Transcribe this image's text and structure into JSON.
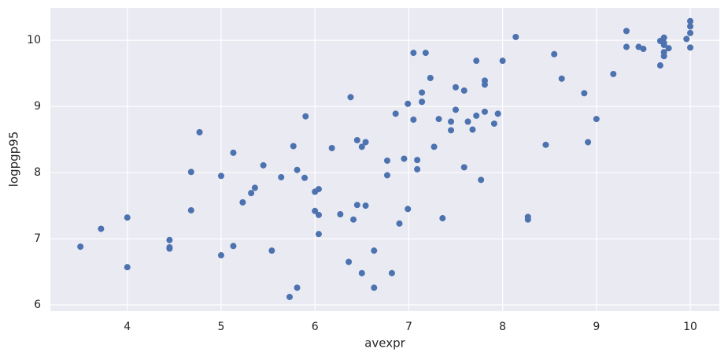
{
  "chart_data": {
    "type": "scatter",
    "x_label": "avexpr",
    "y_label": "logpgp95",
    "x": [
      3.5,
      3.72,
      4.0,
      4.0,
      4.45,
      4.45,
      4.45,
      4.68,
      4.68,
      4.77,
      5.0,
      5.0,
      5.13,
      5.13,
      5.23,
      5.32,
      5.36,
      5.45,
      5.54,
      5.64,
      5.77,
      5.81,
      5.89,
      5.9,
      5.73,
      5.81,
      6.0,
      6.04,
      6.0,
      6.04,
      6.04,
      6.18,
      6.27,
      6.36,
      6.38,
      6.41,
      6.45,
      6.5,
      6.54,
      6.45,
      6.54,
      6.5,
      6.63,
      6.63,
      6.82,
      6.77,
      6.77,
      6.86,
      6.9,
      6.95,
      6.99,
      6.99,
      7.05,
      7.05,
      7.09,
      7.09,
      7.14,
      7.14,
      7.18,
      7.23,
      7.27,
      7.32,
      7.36,
      7.45,
      7.45,
      7.5,
      7.5,
      7.59,
      7.59,
      7.63,
      7.68,
      7.72,
      7.72,
      7.77,
      7.81,
      7.81,
      7.81,
      7.91,
      7.95,
      8.0,
      8.14,
      8.27,
      8.27,
      8.46,
      8.55,
      8.63,
      8.87,
      8.91,
      9.0,
      9.18,
      9.32,
      9.32,
      9.45,
      9.5,
      9.68,
      9.68,
      9.72,
      9.72,
      9.72,
      9.72,
      9.72,
      9.77,
      9.96,
      10.0,
      10.0,
      10.0,
      10.0
    ],
    "values": [
      6.88,
      7.15,
      7.32,
      6.57,
      6.98,
      6.87,
      6.85,
      8.01,
      7.43,
      8.61,
      7.95,
      6.75,
      8.3,
      6.89,
      7.55,
      7.69,
      7.77,
      8.11,
      6.82,
      7.93,
      8.4,
      8.04,
      7.92,
      8.85,
      6.12,
      6.26,
      7.71,
      7.75,
      7.42,
      7.36,
      7.07,
      8.37,
      7.37,
      6.65,
      9.14,
      7.29,
      8.49,
      8.39,
      8.46,
      7.51,
      7.5,
      6.48,
      6.82,
      6.26,
      6.48,
      8.18,
      7.96,
      8.89,
      7.23,
      8.21,
      7.45,
      9.04,
      9.81,
      8.8,
      8.19,
      8.05,
      9.07,
      9.21,
      9.81,
      9.43,
      8.39,
      8.81,
      7.31,
      8.64,
      8.77,
      8.95,
      9.29,
      9.24,
      8.08,
      8.77,
      8.65,
      9.69,
      8.86,
      7.89,
      8.92,
      9.39,
      9.33,
      8.74,
      8.89,
      9.69,
      10.05,
      7.33,
      7.29,
      8.42,
      9.79,
      9.42,
      9.2,
      8.46,
      8.81,
      9.49,
      10.14,
      9.9,
      9.9,
      9.87,
      9.99,
      9.62,
      10.04,
      9.96,
      9.93,
      9.82,
      9.76,
      9.88,
      10.02,
      10.29,
      10.21,
      10.11,
      9.89
    ],
    "color": "#4c72b0",
    "xlim": [
      3.18,
      10.31
    ],
    "ylim": [
      5.905,
      10.49
    ],
    "xticks": [
      4,
      5,
      6,
      7,
      8,
      9,
      10
    ],
    "yticks": [
      6,
      7,
      8,
      9,
      10
    ],
    "grid": true
  }
}
